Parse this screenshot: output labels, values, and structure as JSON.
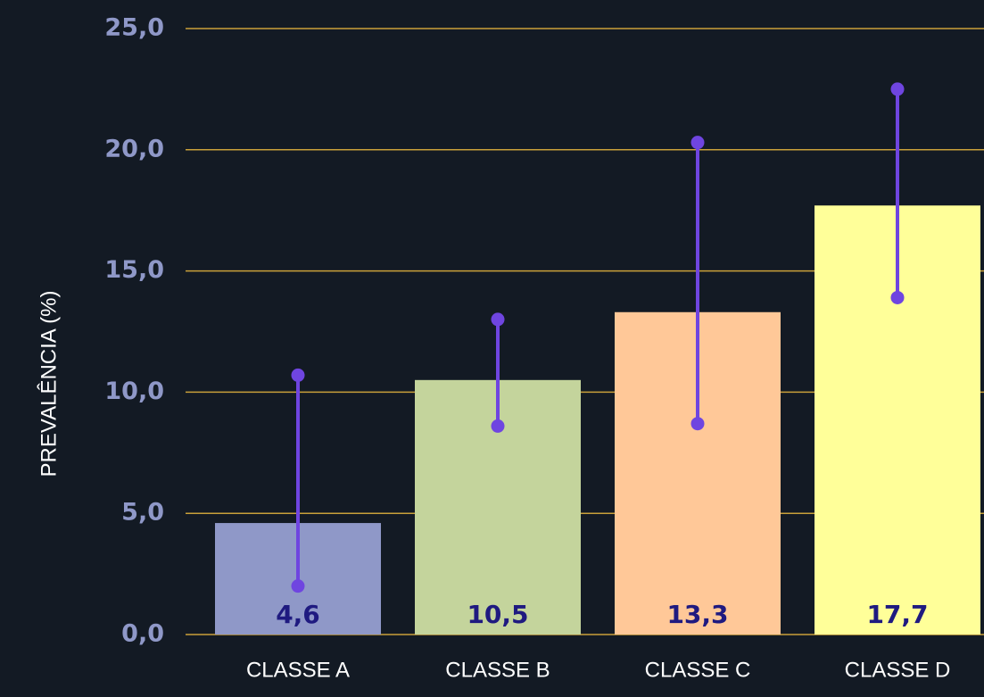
{
  "chart_data": {
    "type": "bar",
    "y_label": "PREVALÊNCIA (%)",
    "categories": [
      "CLASSE A",
      "CLASSE B",
      "CLASSE C",
      "CLASSE D"
    ],
    "values": [
      4.6,
      10.5,
      13.3,
      17.7
    ],
    "value_labels": [
      "4,6",
      "10,5",
      "13,3",
      "17,7"
    ],
    "lower": [
      2.0,
      8.6,
      8.7,
      13.9
    ],
    "upper": [
      10.7,
      13.0,
      20.3,
      22.5
    ],
    "colors": [
      "#8f98c8",
      "#c4d49c",
      "#ffc898",
      "#ffff99"
    ],
    "error_color": "#6f45e0",
    "ylim": [
      0,
      25
    ],
    "yticks": [
      {
        "value": 0,
        "label": "0,0"
      },
      {
        "value": 5,
        "label": "5,0"
      },
      {
        "value": 10,
        "label": "10,0"
      },
      {
        "value": 15,
        "label": "15,0"
      },
      {
        "value": 20,
        "label": "20,0"
      },
      {
        "value": 25,
        "label": "25,0"
      }
    ],
    "grid": true
  }
}
